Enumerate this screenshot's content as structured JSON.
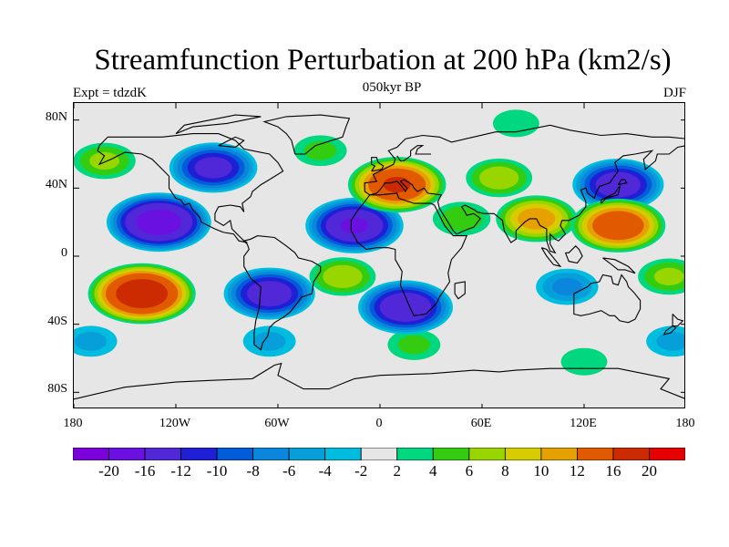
{
  "header": {
    "title": "Streamfunction Perturbation at 200 hPa (km2/s)",
    "left_label": "Expt = tdzdK",
    "center_label": "050kyr BP",
    "right_label": "DJF"
  },
  "chart_data": {
    "type": "heatmap",
    "title": "Streamfunction Perturbation at 200 hPa (km2/s)",
    "subtitle": "050kyr BP",
    "experiment": "Expt = tdzdK",
    "season": "DJF",
    "units": "km2/s",
    "lon_range": [
      -180,
      180
    ],
    "lat_range": [
      -90,
      90
    ],
    "lon_ticks": [
      {
        "value": -180,
        "label": "180"
      },
      {
        "value": -120,
        "label": "120W"
      },
      {
        "value": -60,
        "label": "60W"
      },
      {
        "value": 0,
        "label": "0"
      },
      {
        "value": 60,
        "label": "60E"
      },
      {
        "value": 120,
        "label": "120E"
      },
      {
        "value": 180,
        "label": "180"
      }
    ],
    "lat_ticks": [
      {
        "value": 80,
        "label": "80N"
      },
      {
        "value": 40,
        "label": "40N"
      },
      {
        "value": 0,
        "label": "0"
      },
      {
        "value": -40,
        "label": "40S"
      },
      {
        "value": -80,
        "label": "80S"
      }
    ],
    "contour_levels": [
      -20,
      -16,
      -12,
      -10,
      -8,
      -6,
      -4,
      -2,
      2,
      4,
      6,
      8,
      10,
      12,
      16,
      20
    ],
    "colorbar_labels": [
      "-20",
      "-16",
      "-12",
      "-10",
      "-8",
      "-6",
      "-4",
      "-2",
      "2",
      "4",
      "6",
      "8",
      "10",
      "12",
      "16",
      "20"
    ],
    "colors": [
      "#7a00dc",
      "#6a10e0",
      "#5028d8",
      "#1f1fd6",
      "#005cd8",
      "#0a86dd",
      "#069fd9",
      "#00bde0",
      "#e6e6e6",
      "#00d77f",
      "#33cc11",
      "#99d600",
      "#d7cc00",
      "#e6a100",
      "#e25a00",
      "#cc2a00",
      "#e60000"
    ],
    "anomaly_centers": [
      {
        "lon": -130,
        "lat": 20,
        "value": -18
      },
      {
        "lon": -98,
        "lat": 52,
        "value": -13
      },
      {
        "lon": -162,
        "lat": 56,
        "value": 6
      },
      {
        "lon": -140,
        "lat": -22,
        "value": 19
      },
      {
        "lon": -65,
        "lat": -22,
        "value": -14
      },
      {
        "lon": -22,
        "lat": -12,
        "value": 7
      },
      {
        "lon": -15,
        "lat": 18,
        "value": -16
      },
      {
        "lon": 15,
        "lat": -30,
        "value": -15
      },
      {
        "lon": 10,
        "lat": 42,
        "value": 16
      },
      {
        "lon": 48,
        "lat": 22,
        "value": 5
      },
      {
        "lon": 70,
        "lat": 46,
        "value": 7
      },
      {
        "lon": 140,
        "lat": 42,
        "value": -14
      },
      {
        "lon": 140,
        "lat": 18,
        "value": 15
      },
      {
        "lon": 92,
        "lat": 22,
        "value": 11
      },
      {
        "lon": 110,
        "lat": -18,
        "value": -6
      },
      {
        "lon": 20,
        "lat": -52,
        "value": 4
      },
      {
        "lon": 120,
        "lat": -62,
        "value": 3
      },
      {
        "lon": -65,
        "lat": -50,
        "value": -4
      },
      {
        "lon": -170,
        "lat": -50,
        "value": -4
      },
      {
        "lon": 172,
        "lat": -50,
        "value": -4
      },
      {
        "lon": 170,
        "lat": -12,
        "value": 6
      },
      {
        "lon": -35,
        "lat": 62,
        "value": 4
      },
      {
        "lon": 80,
        "lat": 78,
        "value": 3
      }
    ]
  }
}
